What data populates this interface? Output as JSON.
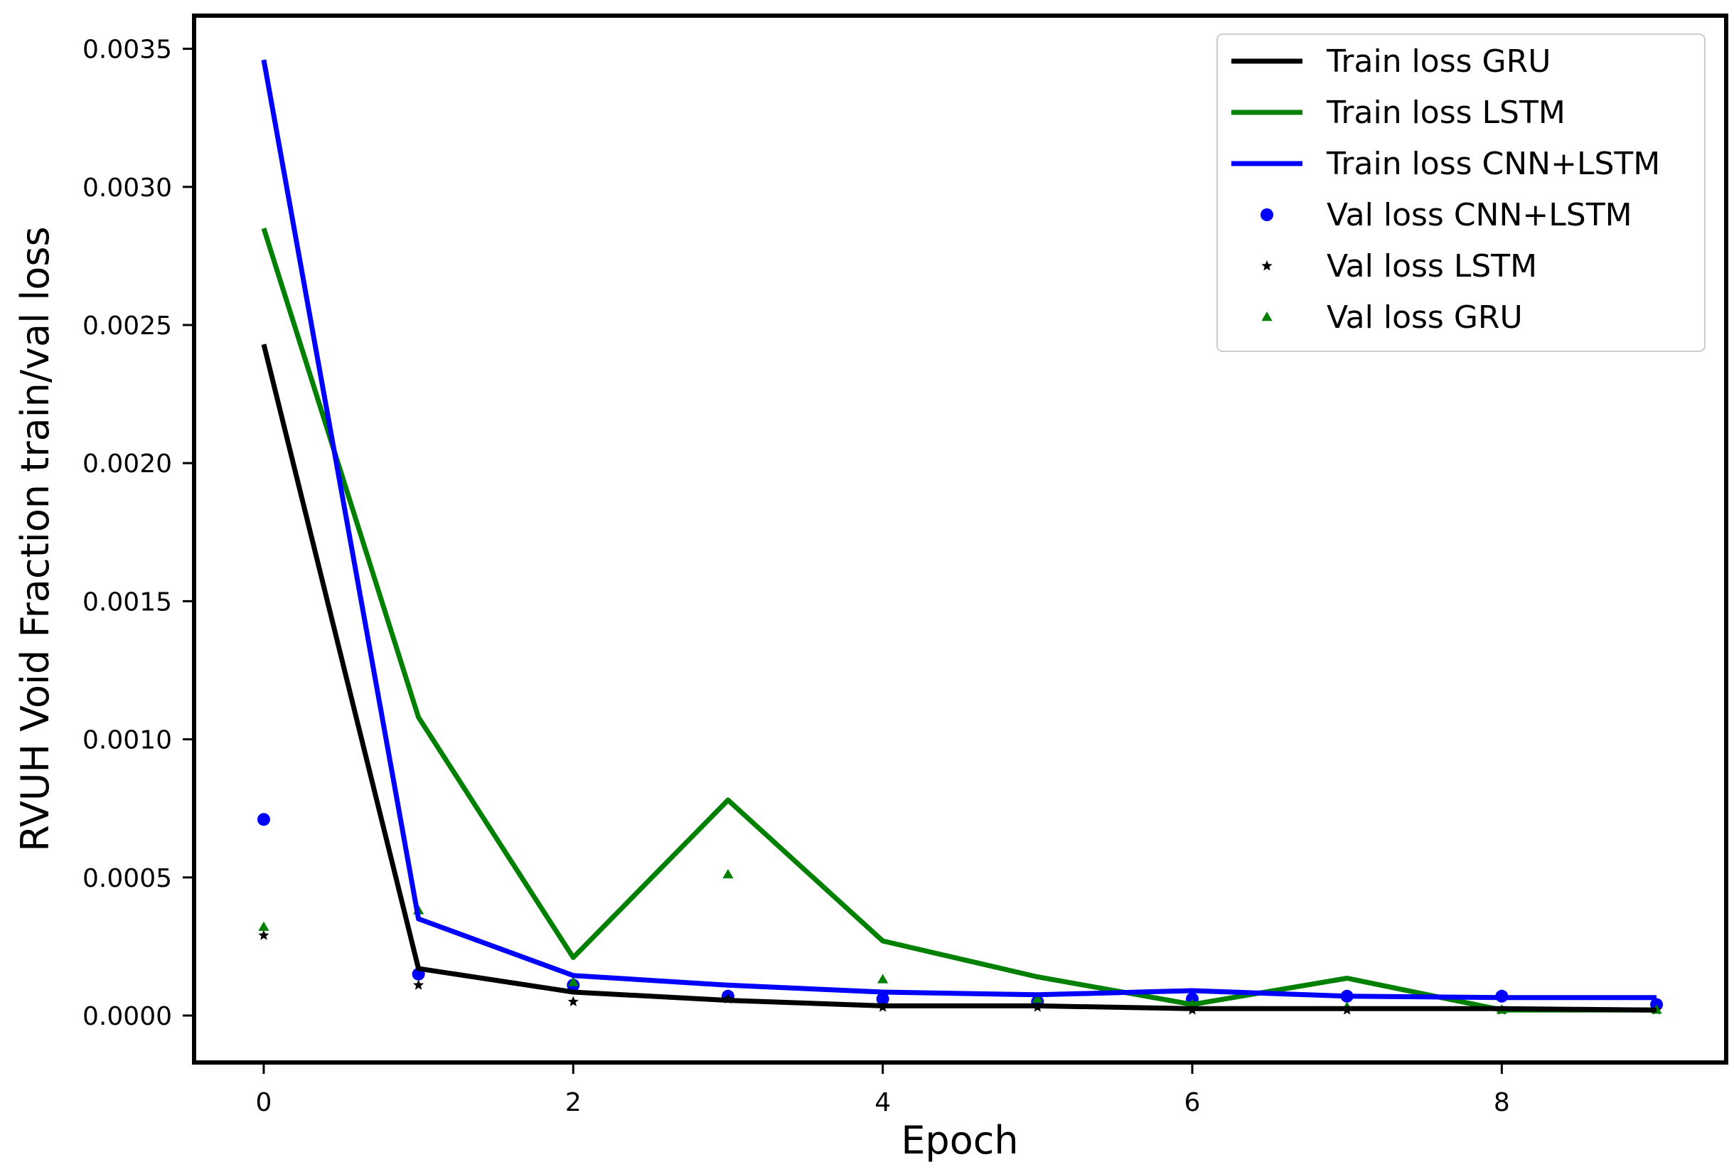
{
  "chart_data": {
    "type": "line",
    "title": "",
    "xlabel": "Epoch",
    "ylabel": "RVUH Void Fraction train/val loss",
    "xlim": [
      -0.45,
      9.45
    ],
    "ylim": [
      -0.00017,
      0.00362
    ],
    "xticks": [
      "0",
      "2",
      "4",
      "6",
      "8"
    ],
    "yticks": [
      "0.0000",
      "0.0005",
      "0.0010",
      "0.0015",
      "0.0020",
      "0.0025",
      "0.0030",
      "0.0035"
    ],
    "grid": false,
    "legend_position": "top-right",
    "x": [
      0,
      1,
      2,
      3,
      4,
      5,
      6,
      7,
      8,
      9
    ],
    "series": [
      {
        "name": "Train loss GRU",
        "kind": "line",
        "color": "#000000",
        "values": [
          0.00243,
          0.00017,
          8.5e-05,
          5.5e-05,
          3.5e-05,
          3.5e-05,
          2.5e-05,
          2.5e-05,
          2.5e-05,
          2e-05
        ]
      },
      {
        "name": "Train loss LSTM",
        "kind": "line",
        "color": "#008000",
        "values": [
          0.00285,
          0.00108,
          0.00021,
          0.00078,
          0.00027,
          0.00014,
          4e-05,
          0.000135,
          2e-05,
          2e-05
        ]
      },
      {
        "name": "Train loss CNN+LSTM",
        "kind": "line",
        "color": "#0000ff",
        "values": [
          0.00346,
          0.00035,
          0.000145,
          0.00011,
          8.5e-05,
          7.5e-05,
          9e-05,
          7e-05,
          6.5e-05,
          6.5e-05
        ]
      },
      {
        "name": "Val loss CNN+LSTM",
        "kind": "marker",
        "marker": "circle",
        "color": "#0000ff",
        "values": [
          0.00071,
          0.00015,
          0.00011,
          7e-05,
          6e-05,
          5e-05,
          6e-05,
          7e-05,
          7e-05,
          4e-05
        ]
      },
      {
        "name": "Val loss LSTM",
        "kind": "marker",
        "marker": "star",
        "color": "#000000",
        "values": [
          0.00029,
          0.00011,
          5e-05,
          6e-05,
          3e-05,
          3e-05,
          2e-05,
          2e-05,
          2e-05,
          2e-05
        ]
      },
      {
        "name": "Val loss GRU",
        "kind": "marker",
        "marker": "triangle",
        "color": "#008000",
        "values": [
          0.00032,
          0.00038,
          0.00012,
          0.00051,
          0.00013,
          6e-05,
          4e-05,
          3e-05,
          2e-05,
          2e-05
        ]
      }
    ]
  }
}
